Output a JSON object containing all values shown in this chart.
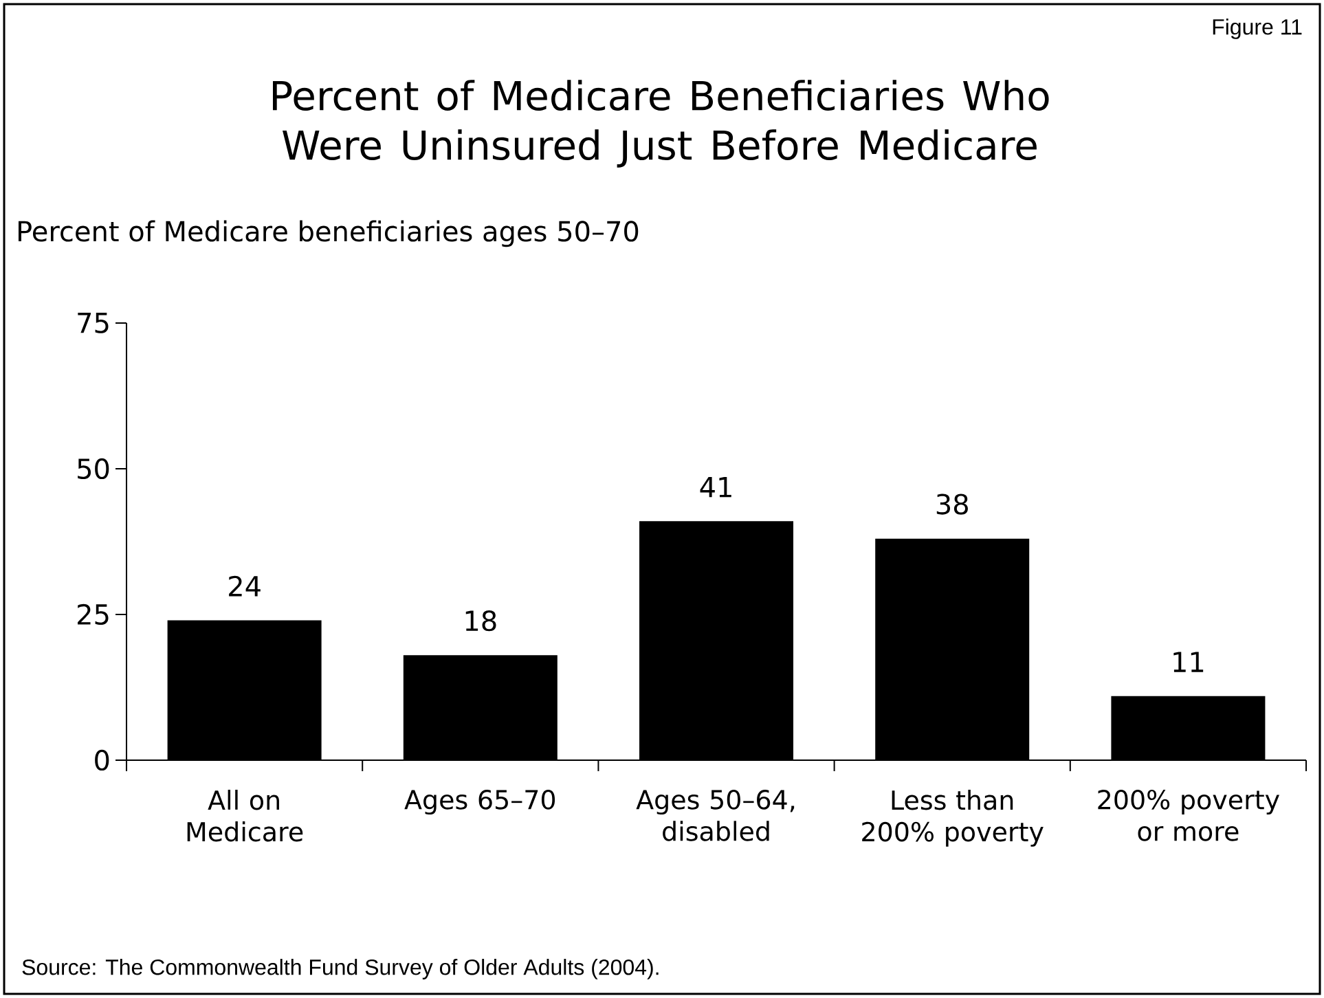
{
  "chart_data": {
    "type": "bar",
    "title": "Percent of Medicare Beneficiaries Who Were Uninsured Just Before Medicare",
    "ylabel": "Percent of Medicare beneficiaries ages 50–70",
    "categories": [
      "All on Medicare",
      "Ages 65–70",
      "Ages 50–64, disabled",
      "Less than 200% poverty",
      "200% poverty or more"
    ],
    "values": [
      24,
      18,
      41,
      38,
      11
    ],
    "color": "#000000",
    "ylim": [
      0,
      75
    ],
    "yticks": [
      0,
      25,
      50,
      75
    ],
    "grid": false,
    "data_labels": true,
    "annotations": [
      "Figure 11",
      "Source: The Commonwealth Fund Survey of Older Adults (2004)."
    ]
  }
}
